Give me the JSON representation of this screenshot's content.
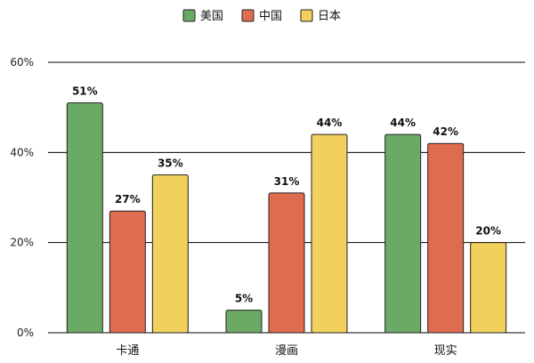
{
  "chart_data": {
    "type": "bar",
    "categories": [
      "卡通",
      "漫画",
      "现实"
    ],
    "series": [
      {
        "name": "美国",
        "color": "#6aaa64",
        "values": [
          51,
          5,
          44
        ]
      },
      {
        "name": "中国",
        "color": "#e06c50",
        "values": [
          27,
          31,
          42
        ]
      },
      {
        "name": "日本",
        "color": "#f2d05c",
        "values": [
          35,
          44,
          20
        ]
      }
    ],
    "title": "",
    "xlabel": "",
    "ylabel": "",
    "ylim": [
      0,
      60
    ],
    "yticks": [
      0,
      20,
      40,
      60
    ],
    "value_suffix": "%",
    "grid": true,
    "legend_position": "top-center",
    "bar_border_color": "#222222",
    "gridline_color": "#000000"
  }
}
